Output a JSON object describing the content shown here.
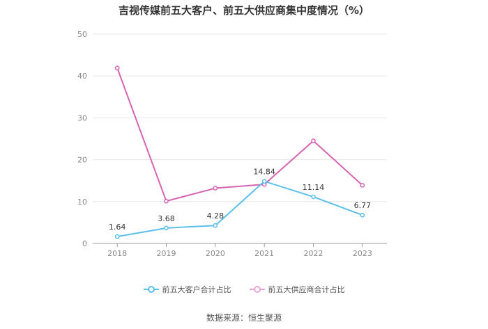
{
  "chart_data": {
    "type": "line",
    "title": "吉视传媒前五大客户、前五大供应商集中度情况（%）",
    "x": [
      "2018",
      "2019",
      "2020",
      "2021",
      "2022",
      "2023"
    ],
    "ylim": [
      0,
      50
    ],
    "yticks": [
      "0",
      "10",
      "20",
      "30",
      "40",
      "50"
    ],
    "grid": true,
    "legend_position": "bottom",
    "series": [
      {
        "name": "前五大客户合计占比",
        "values": [
          1.64,
          3.68,
          4.28,
          14.84,
          11.14,
          6.77
        ],
        "labels": [
          "1.64",
          "3.68",
          "4.28",
          "14.84",
          "11.14",
          "6.77"
        ],
        "color": "#5bbfea"
      },
      {
        "name": "前五大供应商合计占比",
        "values": [
          41.9,
          10.1,
          13.2,
          14.1,
          24.5,
          13.9
        ],
        "color": "#d764b3"
      }
    ]
  },
  "source": "数据来源：恒生聚源"
}
